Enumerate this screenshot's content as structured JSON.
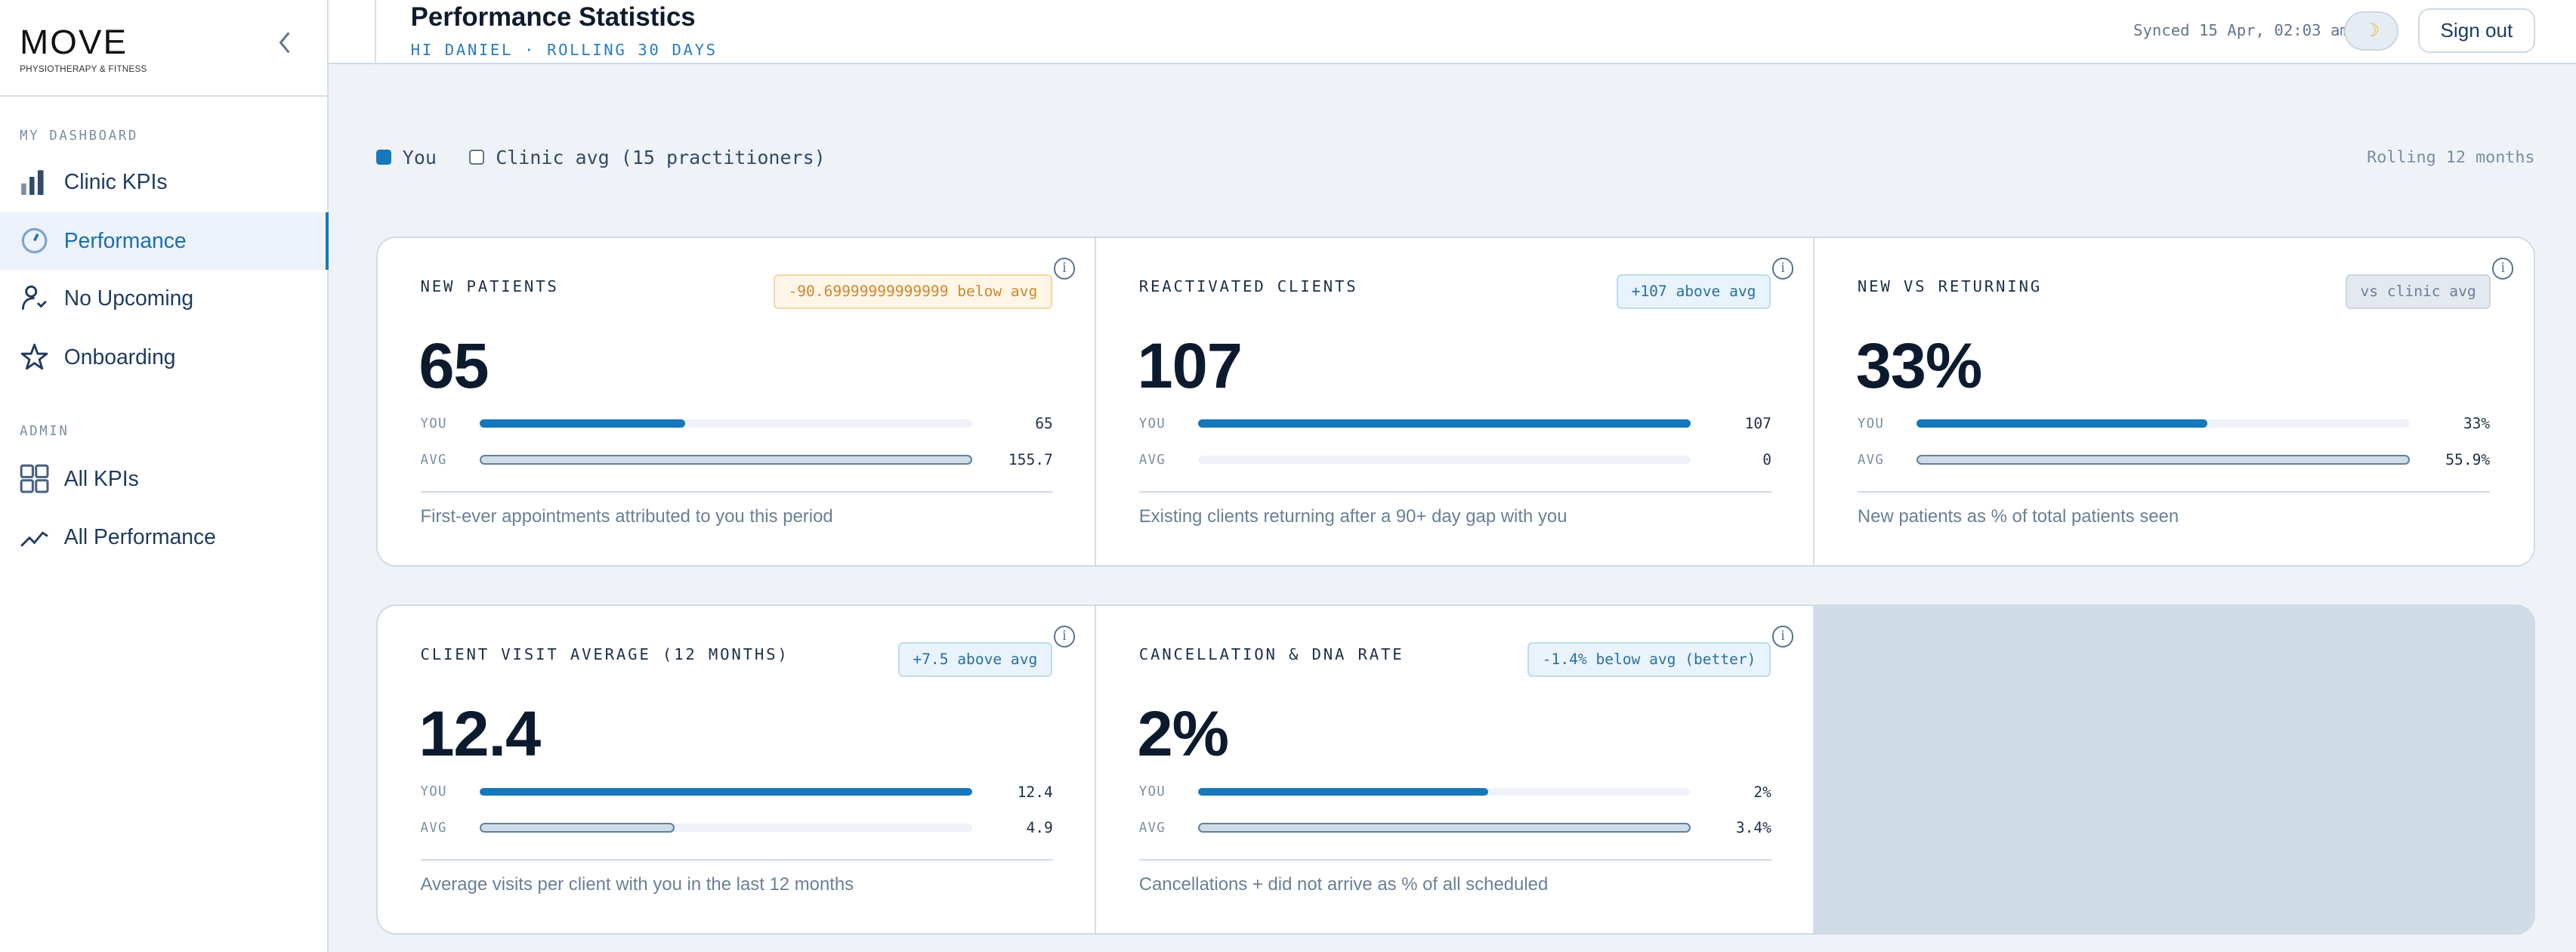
{
  "brand": {
    "logo_text": "MOVE",
    "logo_sub": "PHYSIOTHERAPY & FITNESS"
  },
  "sidebar": {
    "sections": [
      {
        "label": "MY DASHBOARD",
        "items": [
          {
            "label": "Clinic KPIs",
            "icon": "bar-chart-icon"
          },
          {
            "label": "Performance",
            "icon": "gauge-icon",
            "active": true
          },
          {
            "label": "No Upcoming",
            "icon": "user-check-icon"
          },
          {
            "label": "Onboarding",
            "icon": "star-icon"
          }
        ]
      },
      {
        "label": "ADMIN",
        "items": [
          {
            "label": "All KPIs",
            "icon": "grid-icon"
          },
          {
            "label": "All Performance",
            "icon": "trend-icon"
          }
        ]
      }
    ]
  },
  "header": {
    "title": "Performance Statistics",
    "subtitle": "HI DANIEL · ROLLING 30 DAYS",
    "synced": "Synced 15 Apr, 02:03 am",
    "theme_icon": "moon-icon",
    "sign_out": "Sign out"
  },
  "legend": {
    "you": "You",
    "avg": "Clinic avg (15 practitioners)",
    "period": "Rolling 12 months"
  },
  "colors": {
    "accent": "#1677bb",
    "warn": "#d2872a",
    "empty_cell": "#cfdce6"
  },
  "cards": [
    {
      "title": "NEW PATIENTS",
      "badge": "-90.69999999999999 below avg",
      "badge_type": "warn",
      "value": "65",
      "you_label": "YOU",
      "avg_label": "AVG",
      "you": 65,
      "avg": 155.7,
      "you_text": "65",
      "avg_text": "155.7",
      "desc": "First-ever appointments attributed to you this period"
    },
    {
      "title": "REACTIVATED CLIENTS",
      "badge": "+107 above avg",
      "badge_type": "good",
      "value": "107",
      "you_label": "YOU",
      "avg_label": "AVG",
      "you": 107,
      "avg": 0,
      "you_text": "107",
      "avg_text": "0",
      "desc": "Existing clients returning after a 90+ day gap with you"
    },
    {
      "title": "NEW VS RETURNING",
      "badge": "vs clinic avg",
      "badge_type": "neutral",
      "value": "33%",
      "you_label": "YOU",
      "avg_label": "AVG",
      "you": 33,
      "avg": 55.9,
      "you_text": "33%",
      "avg_text": "55.9%",
      "desc": "New patients as % of total patients seen"
    },
    {
      "title": "CLIENT VISIT AVERAGE (12 MONTHS)",
      "badge": "+7.5 above avg",
      "badge_type": "good",
      "value": "12.4",
      "you_label": "YOU",
      "avg_label": "AVG",
      "you": 12.4,
      "avg": 4.9,
      "you_text": "12.4",
      "avg_text": "4.9",
      "desc": "Average visits per client with you in the last 12 months"
    },
    {
      "title": "CANCELLATION & DNA RATE",
      "badge": "-1.4% below avg (better)",
      "badge_type": "good",
      "value": "2%",
      "you_label": "YOU",
      "avg_label": "AVG",
      "you": 2,
      "avg": 3.4,
      "you_text": "2%",
      "avg_text": "3.4%",
      "desc": "Cancellations + did not arrive as % of all scheduled"
    }
  ]
}
